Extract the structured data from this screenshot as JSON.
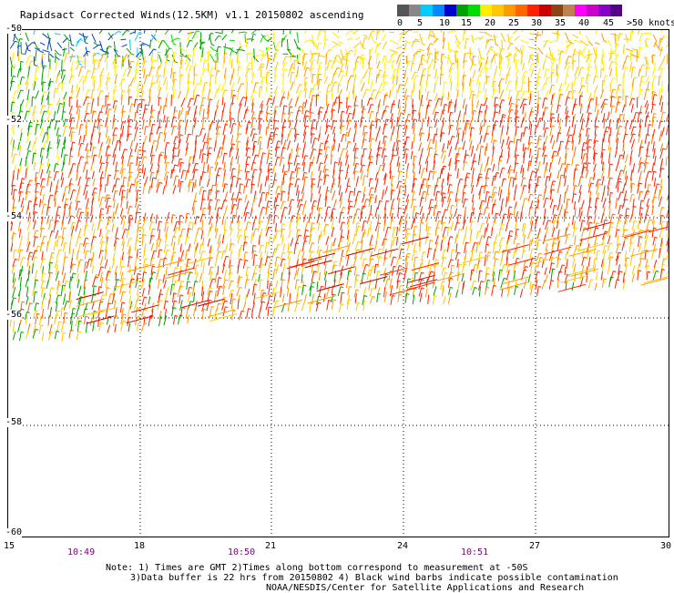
{
  "title": "Rapidsact Corrected Winds(12.5KM) v1.1 20150802 ascending",
  "legend": {
    "colors": [
      "#555555",
      "#888888",
      "#00ccff",
      "#0088ff",
      "#0000cc",
      "#00a000",
      "#00dd00",
      "#ffee00",
      "#ffc800",
      "#ff9900",
      "#ff6600",
      "#ff2200",
      "#cc0000",
      "#8b4513",
      "#c08050",
      "#ff00ff",
      "#cc00cc",
      "#8800cc",
      "#550088"
    ],
    "labels": [
      "0",
      "5",
      "10",
      "15",
      "20",
      "25",
      "30",
      "35",
      "40",
      "45",
      ">50 knots"
    ]
  },
  "axes": {
    "y_ticks": [
      "-50",
      "-52",
      "-54",
      "-56",
      "-58",
      "-60"
    ],
    "x_ticks": [
      "15",
      "18",
      "21",
      "24",
      "27",
      "30"
    ],
    "times": [
      "10:49",
      "10:50",
      "10:51"
    ]
  },
  "notes": {
    "line1": "Note: 1) Times are GMT 2)Times along bottom correspond to measurement at -50S",
    "line2": "3)Data buffer is 22 hrs from 20150802 4) Black wind barbs indicate possible contamination",
    "line3": "NOAA/NESDIS/Center for Satellite Applications and Research"
  }
}
